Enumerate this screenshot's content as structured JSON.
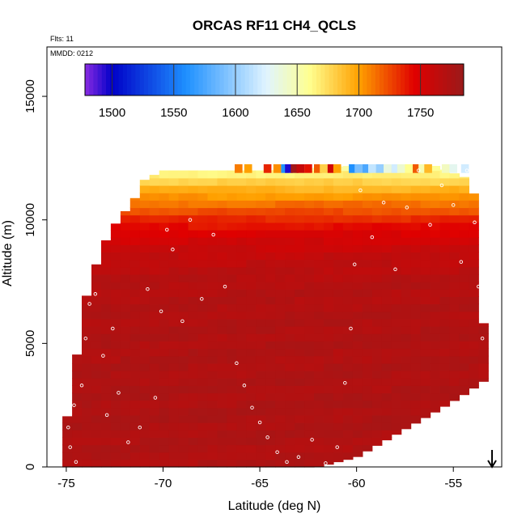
{
  "chart_data": {
    "type": "heatmap",
    "title": "ORCAS RF11 CH4_QCLS",
    "annotations": {
      "flights": "Flts: 11",
      "date": "MMDD: 0212"
    },
    "xlabel": "Latitude (deg N)",
    "ylabel": "Altitude (m)",
    "xlim": [
      -76,
      -52.5
    ],
    "ylim": [
      0,
      17000
    ],
    "x_ticks": [
      -75,
      -70,
      -65,
      -60,
      -55
    ],
    "x_tick_labels": [
      "-75",
      "-70",
      "-65",
      "-60",
      "-55"
    ],
    "y_ticks": [
      0,
      5000,
      10000,
      15000
    ],
    "y_tick_labels": [
      "0",
      "5000",
      "10000",
      "15000"
    ],
    "colorbar": {
      "min": 1478,
      "max": 1785,
      "ticks": [
        1500,
        1550,
        1600,
        1650,
        1700,
        1750
      ],
      "tick_labels": [
        "1500",
        "1550",
        "1600",
        "1650",
        "1700",
        "1750"
      ],
      "colors": [
        "#8a2be2",
        "#0000c8",
        "#1e90ff",
        "#e0f4ff",
        "#ffff90",
        "#ffa000",
        "#e00000",
        "#9a1a1a"
      ],
      "color_stops": [
        1478,
        1500,
        1560,
        1625,
        1660,
        1700,
        1745,
        1785
      ]
    },
    "field": {
      "columns": [
        {
          "lat": -75.0,
          "top": 1800
        },
        {
          "lat": -74.5,
          "top": 4300
        },
        {
          "lat": -74.0,
          "top": 6800
        },
        {
          "lat": -73.5,
          "top": 8100
        },
        {
          "lat": -73.0,
          "top": 9100
        },
        {
          "lat": -72.5,
          "top": 9800
        },
        {
          "lat": -72.0,
          "top": 10300
        },
        {
          "lat": -71.5,
          "top": 10800
        },
        {
          "lat": -71.0,
          "top": 11600
        },
        {
          "lat": -70.0,
          "top": 12000
        },
        {
          "lat": -65.0,
          "top": 12000
        },
        {
          "lat": -60.0,
          "top": 12200
        },
        {
          "lat": -56.0,
          "top": 12200
        },
        {
          "lat": -54.0,
          "top": 11600
        },
        {
          "lat": -53.7,
          "top": 8400
        },
        {
          "lat": -53.4,
          "top": 5300
        },
        {
          "lat": -53.2,
          "top": 3600
        }
      ],
      "bottom": [
        {
          "lat": -75.2,
          "alt": 0
        },
        {
          "lat": -62.0,
          "alt": 0
        },
        {
          "lat": -60.0,
          "alt": 400
        },
        {
          "lat": -58.0,
          "alt": 1300
        },
        {
          "lat": -56.0,
          "alt": 2200
        },
        {
          "lat": -54.5,
          "alt": 2900
        },
        {
          "lat": -53.2,
          "alt": 3600
        }
      ],
      "layers": [
        {
          "alt": 0,
          "value": 1772
        },
        {
          "alt": 2000,
          "value": 1774
        },
        {
          "alt": 4000,
          "value": 1773
        },
        {
          "alt": 6000,
          "value": 1772
        },
        {
          "alt": 7500,
          "value": 1770
        },
        {
          "alt": 8500,
          "value": 1763
        },
        {
          "alt": 9300,
          "value": 1752
        },
        {
          "alt": 10000,
          "value": 1735
        },
        {
          "alt": 10700,
          "value": 1712
        },
        {
          "alt": 11300,
          "value": 1690
        },
        {
          "alt": 11800,
          "value": 1668
        },
        {
          "alt": 12200,
          "value": 1650
        }
      ]
    },
    "track_points": [
      [
        -74.9,
        1600
      ],
      [
        -74.8,
        800
      ],
      [
        -74.6,
        2500
      ],
      [
        -74.5,
        200
      ],
      [
        -74.2,
        3300
      ],
      [
        -74.0,
        5200
      ],
      [
        -73.8,
        6600
      ],
      [
        -73.7,
        8300
      ],
      [
        -73.5,
        7000
      ],
      [
        -73.3,
        9300
      ],
      [
        -73.1,
        4500
      ],
      [
        -72.9,
        2100
      ],
      [
        -72.6,
        5600
      ],
      [
        -72.3,
        3000
      ],
      [
        -71.8,
        1000
      ],
      [
        -71.2,
        1600
      ],
      [
        -70.8,
        7200
      ],
      [
        -70.4,
        2800
      ],
      [
        -70.1,
        6300
      ],
      [
        -69.8,
        9600
      ],
      [
        -69.5,
        8800
      ],
      [
        -69.0,
        5900
      ],
      [
        -68.6,
        10000
      ],
      [
        -68.0,
        6800
      ],
      [
        -67.4,
        9400
      ],
      [
        -66.8,
        7300
      ],
      [
        -66.2,
        4200
      ],
      [
        -65.8,
        3300
      ],
      [
        -65.4,
        2400
      ],
      [
        -65.0,
        1800
      ],
      [
        -64.6,
        1200
      ],
      [
        -64.1,
        600
      ],
      [
        -63.6,
        200
      ],
      [
        -63.0,
        400
      ],
      [
        -62.3,
        1100
      ],
      [
        -61.6,
        150
      ],
      [
        -61.0,
        800
      ],
      [
        -60.6,
        3400
      ],
      [
        -60.3,
        5600
      ],
      [
        -60.1,
        8200
      ],
      [
        -59.8,
        11200
      ],
      [
        -59.2,
        9300
      ],
      [
        -58.6,
        10700
      ],
      [
        -58.0,
        8000
      ],
      [
        -57.4,
        10500
      ],
      [
        -56.8,
        12000
      ],
      [
        -56.2,
        9800
      ],
      [
        -55.6,
        11400
      ],
      [
        -55.0,
        10600
      ],
      [
        -54.6,
        8300
      ],
      [
        -54.3,
        12000
      ],
      [
        -53.9,
        9900
      ],
      [
        -53.7,
        7300
      ],
      [
        -53.5,
        5200
      ]
    ],
    "high_cells": [
      {
        "lat": -66.3,
        "value": 1710
      },
      {
        "lat": -65.8,
        "value": 1700
      },
      {
        "lat": -64.8,
        "value": 1735
      },
      {
        "lat": -64.3,
        "value": 1705
      },
      {
        "lat": -63.9,
        "value": 1560
      },
      {
        "lat": -63.7,
        "value": 1495
      },
      {
        "lat": -63.4,
        "value": 1780
      },
      {
        "lat": -63.1,
        "value": 1760
      },
      {
        "lat": -62.7,
        "value": 1740
      },
      {
        "lat": -62.2,
        "value": 1720
      },
      {
        "lat": -61.9,
        "value": 1680
      },
      {
        "lat": -61.5,
        "value": 1755
      },
      {
        "lat": -61.2,
        "value": 1700
      },
      {
        "lat": -60.4,
        "value": 1560
      },
      {
        "lat": -60.1,
        "value": 1590
      },
      {
        "lat": -59.7,
        "value": 1575
      },
      {
        "lat": -59.4,
        "value": 1615
      },
      {
        "lat": -59.0,
        "value": 1600
      },
      {
        "lat": -58.6,
        "value": 1635
      },
      {
        "lat": -58.2,
        "value": 1620
      },
      {
        "lat": -57.9,
        "value": 1640
      },
      {
        "lat": -57.5,
        "value": 1660
      },
      {
        "lat": -57.1,
        "value": 1720
      },
      {
        "lat": -56.8,
        "value": 1650
      },
      {
        "lat": -56.5,
        "value": 1690
      },
      {
        "lat": -55.6,
        "value": 1645
      },
      {
        "lat": -55.2,
        "value": 1630
      },
      {
        "lat": -54.6,
        "value": 1620
      }
    ],
    "arrow": {
      "lat": -53.0
    }
  }
}
